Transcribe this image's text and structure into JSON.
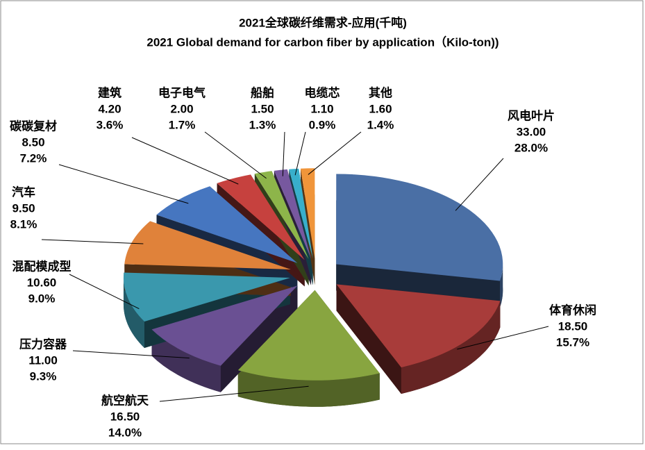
{
  "chart_data": {
    "type": "pie",
    "title": "2021全球碳纤维需求-应用(千吨)",
    "subtitle": "2021 Global demand for carbon fiber by application（Kilo-ton))",
    "categories": [
      "风电叶片",
      "体育休闲",
      "航空航天",
      "压力容器",
      "混配模成型",
      "汽车",
      "碳碳复材",
      "建筑",
      "电子电气",
      "船舶",
      "电缆芯",
      "其他"
    ],
    "values": [
      33,
      18.5,
      16.5,
      11,
      10.6,
      9.5,
      8.5,
      4.2,
      2,
      1.5,
      1.1,
      1.6
    ],
    "value_labels": [
      "33.00",
      "18.50",
      "16.50",
      "11.00",
      "10.60",
      "9.50",
      "8.50",
      "4.20",
      "2.00",
      "1.50",
      "1.10",
      "1.60"
    ],
    "percent_labels": [
      "28.0%",
      "15.7%",
      "14.0%",
      "9.3%",
      "9.0%",
      "8.1%",
      "7.2%",
      "3.6%",
      "1.7%",
      "1.3%",
      "0.9%",
      "1.4%"
    ],
    "colors": [
      "#4a6fa5",
      "#a83c3a",
      "#88a540",
      "#6a5093",
      "#3a98ad",
      "#e0823a",
      "#4676c0",
      "#c6413e",
      "#8db54a",
      "#77589f",
      "#38afcb",
      "#f0953a"
    ]
  }
}
